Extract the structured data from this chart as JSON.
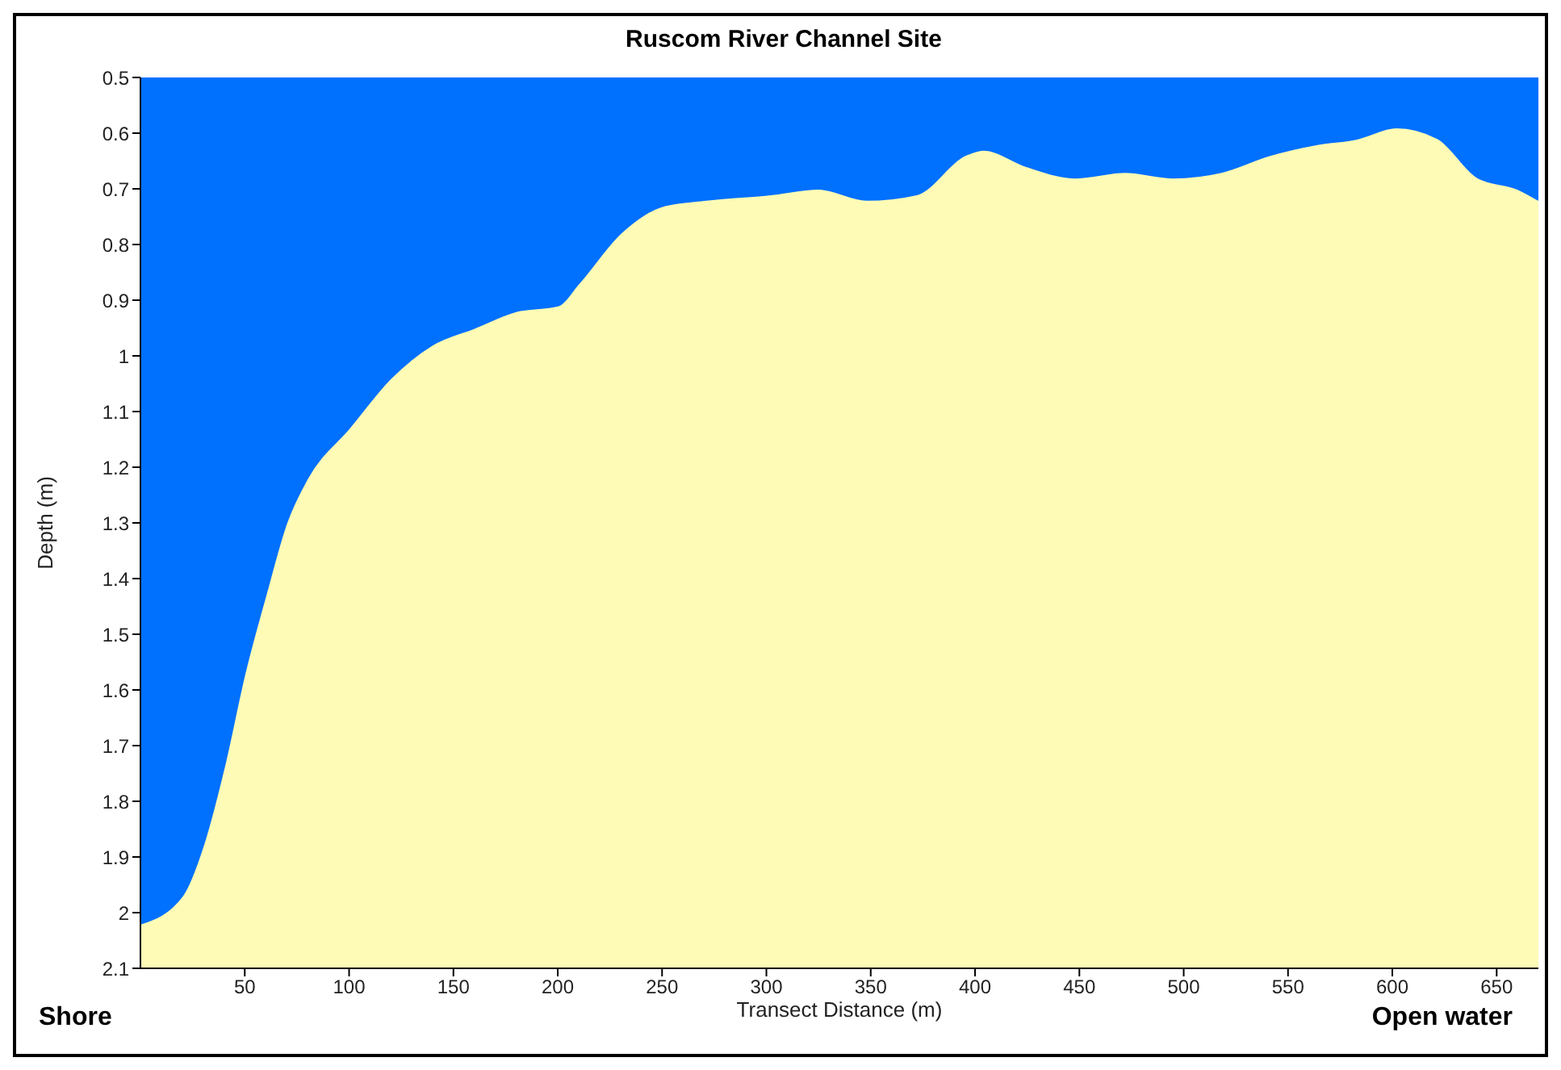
{
  "chart_data": {
    "type": "area",
    "title": "Ruscom River Channel Site",
    "xlabel": "Transect Distance (m)",
    "ylabel": "Depth (m)",
    "x": [
      0,
      20,
      30,
      40,
      50,
      60,
      70,
      80,
      100,
      120,
      140,
      160,
      180,
      200,
      210,
      230,
      251,
      271,
      302,
      325,
      348,
      372,
      395,
      404,
      425,
      448,
      472,
      495,
      518,
      541,
      564,
      583,
      602,
      622,
      641,
      660,
      670
    ],
    "series": [
      {
        "color": "#0070ff",
        "values": [
          2.02,
          1.97,
          1.88,
          1.74,
          1.57,
          1.43,
          1.3,
          1.22,
          1.13,
          1.04,
          0.98,
          0.95,
          0.92,
          0.91,
          0.87,
          0.78,
          0.73,
          0.72,
          0.71,
          0.7,
          0.72,
          0.71,
          0.64,
          0.63,
          0.66,
          0.68,
          0.67,
          0.68,
          0.67,
          0.64,
          0.62,
          0.61,
          0.59,
          0.61,
          0.68,
          0.7,
          0.72
        ]
      }
    ],
    "bands": [
      {
        "axis": "y",
        "from": 0.5,
        "to": 2.1,
        "color": "#fdfbb5"
      }
    ],
    "xlim": [
      0,
      670
    ],
    "xticks": [
      50,
      100,
      150,
      200,
      250,
      300,
      350,
      400,
      450,
      500,
      550,
      600,
      650
    ],
    "ylim": [
      2.1,
      0.5
    ],
    "yticks": [
      0.5,
      0.6,
      0.7,
      0.8,
      0.9,
      1,
      1.1,
      1.2,
      1.3,
      1.4,
      1.5,
      1.6,
      1.7,
      1.8,
      1.9,
      2,
      2.1
    ],
    "grid": false,
    "legend": false,
    "annotations": [
      "Shore",
      "Open water"
    ]
  }
}
